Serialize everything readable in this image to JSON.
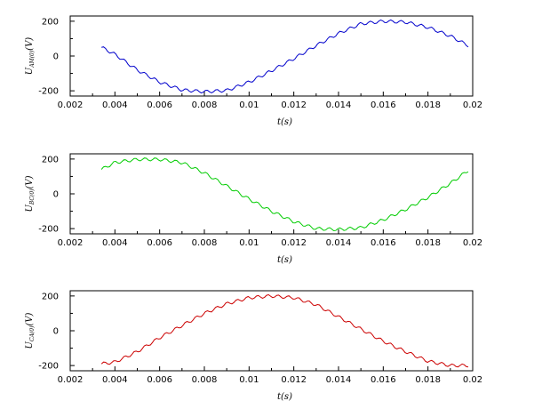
{
  "chart_data": [
    {
      "type": "line",
      "xlabel": "t(s)",
      "ylabel": "U_{AM(0)}(V)",
      "ylabel_main": "U",
      "ylabel_sub": "AM(0)",
      "ylabel_unit": "(V)",
      "xlim": [
        0.002,
        0.02
      ],
      "ylim": [
        -230,
        230
      ],
      "xticks": [
        "0.002",
        "0.004",
        "0.006",
        "0.008",
        "0.01",
        "0.012",
        "0.014",
        "0.016",
        "0.018",
        "0.02"
      ],
      "yticks": [
        "200",
        "0",
        "-200"
      ],
      "grid": false,
      "series": [
        {
          "color": "#0000cc",
          "x": [
            0.0034,
            0.004,
            0.005,
            0.006,
            0.007,
            0.008,
            0.009,
            0.01,
            0.011,
            0.012,
            0.013,
            0.014,
            0.015,
            0.016,
            0.017,
            0.018,
            0.019,
            0.0198
          ],
          "values": [
            50,
            10,
            -80,
            -150,
            -195,
            -205,
            -198,
            -150,
            -85,
            -15,
            60,
            130,
            185,
            200,
            195,
            165,
            115,
            60
          ]
        }
      ]
    },
    {
      "type": "line",
      "xlabel": "t(s)",
      "ylabel": "U_{BC(0)}(V)",
      "ylabel_main": "U",
      "ylabel_sub": "BC(0)",
      "ylabel_unit": "(V)",
      "xlim": [
        0.002,
        0.02
      ],
      "ylim": [
        -230,
        230
      ],
      "xticks": [
        "0.002",
        "0.004",
        "0.006",
        "0.008",
        "0.01",
        "0.012",
        "0.014",
        "0.016",
        "0.018",
        "0.02"
      ],
      "yticks": [
        "200",
        "0",
        "-200"
      ],
      "grid": false,
      "series": [
        {
          "color": "#00cc00",
          "x": [
            0.0034,
            0.004,
            0.005,
            0.006,
            0.007,
            0.008,
            0.009,
            0.01,
            0.011,
            0.012,
            0.013,
            0.014,
            0.015,
            0.016,
            0.017,
            0.018,
            0.019,
            0.0198
          ],
          "values": [
            140,
            180,
            198,
            198,
            180,
            120,
            45,
            -30,
            -100,
            -160,
            -200,
            -205,
            -195,
            -150,
            -90,
            -20,
            60,
            135
          ]
        }
      ]
    },
    {
      "type": "line",
      "xlabel": "t(s)",
      "ylabel": "U_{CA(0)}(V)",
      "ylabel_main": "U",
      "ylabel_sub": "CA(0)",
      "ylabel_unit": "(V)",
      "xlim": [
        0.002,
        0.02
      ],
      "ylim": [
        -230,
        230
      ],
      "xticks": [
        "0.002",
        "0.004",
        "0.006",
        "0.008",
        "0.01",
        "0.012",
        "0.014",
        "0.016",
        "0.018",
        "0.02"
      ],
      "yticks": [
        "200",
        "0",
        "-200"
      ],
      "grid": false,
      "series": [
        {
          "color": "#cc0000",
          "x": [
            0.0034,
            0.004,
            0.005,
            0.006,
            0.007,
            0.008,
            0.009,
            0.01,
            0.011,
            0.012,
            0.013,
            0.014,
            0.015,
            0.016,
            0.017,
            0.018,
            0.019,
            0.0198
          ],
          "values": [
            -190,
            -180,
            -120,
            -40,
            30,
            100,
            155,
            190,
            200,
            190,
            150,
            80,
            10,
            -60,
            -120,
            -175,
            -200,
            -200
          ]
        }
      ]
    }
  ]
}
